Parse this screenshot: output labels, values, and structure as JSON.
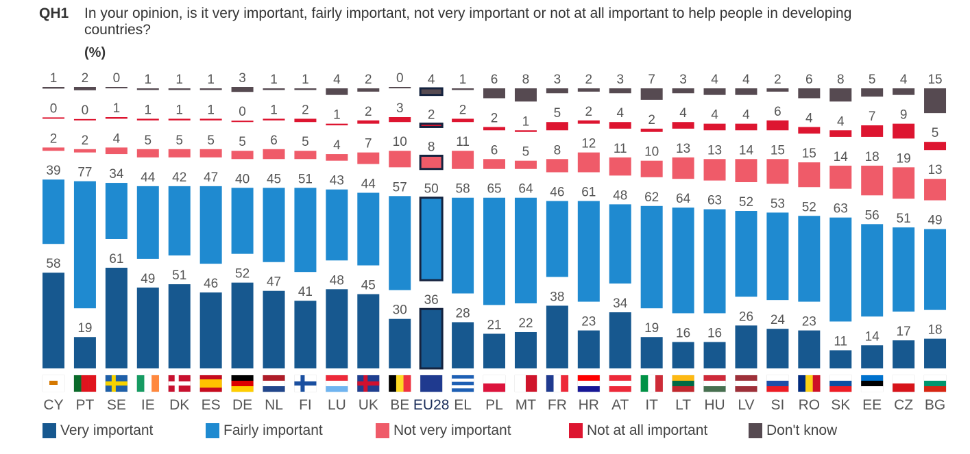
{
  "question": {
    "id": "QH1",
    "text": "In your opinion, is it very important, fairly important, not very important or not at all important to help people in developing countries?",
    "unit": "(%)"
  },
  "chart_data": {
    "type": "bar",
    "stacking": "separated-stacked",
    "categories": [
      "CY",
      "PT",
      "SE",
      "IE",
      "DK",
      "ES",
      "DE",
      "NL",
      "FI",
      "LU",
      "UK",
      "BE",
      "EU28",
      "EL",
      "PL",
      "MT",
      "FR",
      "HR",
      "AT",
      "IT",
      "LT",
      "HU",
      "LV",
      "SI",
      "RO",
      "SK",
      "EE",
      "CZ",
      "BG"
    ],
    "highlight_category": "EU28",
    "series": [
      {
        "name": "Very important",
        "color": "#17588f",
        "values": [
          58,
          19,
          61,
          49,
          51,
          46,
          52,
          47,
          41,
          48,
          45,
          30,
          36,
          28,
          21,
          22,
          38,
          23,
          34,
          19,
          16,
          16,
          26,
          24,
          23,
          11,
          14,
          17,
          18
        ]
      },
      {
        "name": "Fairly important",
        "color": "#1f8ad0",
        "values": [
          39,
          77,
          34,
          44,
          42,
          47,
          40,
          45,
          51,
          43,
          44,
          57,
          50,
          58,
          65,
          64,
          46,
          61,
          48,
          62,
          64,
          63,
          52,
          53,
          52,
          63,
          56,
          51,
          49
        ]
      },
      {
        "name": "Not very important",
        "color": "#ef5b69",
        "values": [
          2,
          2,
          4,
          5,
          5,
          5,
          5,
          6,
          5,
          4,
          7,
          10,
          8,
          11,
          6,
          5,
          8,
          12,
          11,
          10,
          13,
          13,
          14,
          15,
          15,
          14,
          18,
          19,
          13
        ]
      },
      {
        "name": "Not at all important",
        "color": "#dd1530",
        "values": [
          0,
          0,
          1,
          1,
          1,
          1,
          0,
          1,
          2,
          1,
          2,
          3,
          2,
          2,
          2,
          1,
          5,
          2,
          4,
          2,
          4,
          4,
          4,
          6,
          4,
          4,
          7,
          9,
          5
        ]
      },
      {
        "name": "Don't know",
        "color": "#564a51",
        "values": [
          1,
          2,
          0,
          1,
          1,
          1,
          3,
          1,
          1,
          4,
          2,
          0,
          4,
          1,
          6,
          8,
          3,
          2,
          3,
          7,
          3,
          4,
          4,
          2,
          6,
          8,
          5,
          4,
          15
        ]
      }
    ],
    "ylim": [
      0,
      100
    ],
    "grid": false,
    "legend_position": "bottom"
  },
  "flags": {
    "CY": {
      "dir": "h",
      "c": [
        "#ffffff"
      ]
    },
    "PT": {
      "dir": "v",
      "c": [
        "#0a6a2a",
        "#e0141e",
        "#e0141e"
      ]
    },
    "SE": {
      "dir": "cross",
      "c": [
        "#1e5fa8",
        "#f7d200"
      ]
    },
    "IE": {
      "dir": "v",
      "c": [
        "#169b62",
        "#ffffff",
        "#ff883e"
      ]
    },
    "DK": {
      "dir": "cross",
      "c": [
        "#c8102e",
        "#ffffff"
      ]
    },
    "ES": {
      "dir": "h",
      "c": [
        "#c60b1e",
        "#ffc400",
        "#ffc400",
        "#c60b1e"
      ]
    },
    "DE": {
      "dir": "h",
      "c": [
        "#000000",
        "#dd0000",
        "#ffce00"
      ]
    },
    "NL": {
      "dir": "h",
      "c": [
        "#ae1c28",
        "#ffffff",
        "#21468b"
      ]
    },
    "FI": {
      "dir": "cross",
      "c": [
        "#ffffff",
        "#1a4fa0"
      ]
    },
    "LU": {
      "dir": "h",
      "c": [
        "#ed2939",
        "#ffffff",
        "#6fb4f0"
      ]
    },
    "UK": {
      "dir": "cross",
      "c": [
        "#1f3f8f",
        "#d0102e"
      ]
    },
    "BE": {
      "dir": "v",
      "c": [
        "#000000",
        "#fdda24",
        "#ef3340"
      ]
    },
    "EU28": {
      "dir": "h",
      "c": [
        "#1f3a8f"
      ]
    },
    "EL": {
      "dir": "h",
      "c": [
        "#1d5fb4",
        "#ffffff",
        "#1d5fb4",
        "#ffffff",
        "#1d5fb4"
      ]
    },
    "PL": {
      "dir": "h",
      "c": [
        "#ffffff",
        "#dc143c"
      ]
    },
    "MT": {
      "dir": "v",
      "c": [
        "#ffffff",
        "#cf142b"
      ]
    },
    "FR": {
      "dir": "v",
      "c": [
        "#1f3a8f",
        "#ffffff",
        "#ed2939"
      ]
    },
    "HR": {
      "dir": "h",
      "c": [
        "#ff0000",
        "#ffffff",
        "#171796"
      ]
    },
    "AT": {
      "dir": "h",
      "c": [
        "#ed2939",
        "#ffffff",
        "#ed2939"
      ]
    },
    "IT": {
      "dir": "v",
      "c": [
        "#009246",
        "#ffffff",
        "#ce2b37"
      ]
    },
    "LT": {
      "dir": "h",
      "c": [
        "#fdb913",
        "#006a44",
        "#c1272d"
      ]
    },
    "HU": {
      "dir": "h",
      "c": [
        "#ce2939",
        "#ffffff",
        "#477050"
      ]
    },
    "LV": {
      "dir": "h",
      "c": [
        "#9e3039",
        "#ffffff",
        "#9e3039"
      ]
    },
    "SI": {
      "dir": "h",
      "c": [
        "#ffffff",
        "#1f4fa8",
        "#ed1c24"
      ]
    },
    "RO": {
      "dir": "v",
      "c": [
        "#002b7f",
        "#fcd116",
        "#ce1126"
      ]
    },
    "SK": {
      "dir": "h",
      "c": [
        "#ffffff",
        "#0b4ea2",
        "#ee1c25"
      ]
    },
    "EE": {
      "dir": "h",
      "c": [
        "#0072ce",
        "#000000",
        "#ffffff"
      ]
    },
    "CZ": {
      "dir": "h",
      "c": [
        "#ffffff",
        "#d7141a"
      ]
    },
    "BG": {
      "dir": "h",
      "c": [
        "#ffffff",
        "#00966e",
        "#d62612"
      ]
    }
  }
}
